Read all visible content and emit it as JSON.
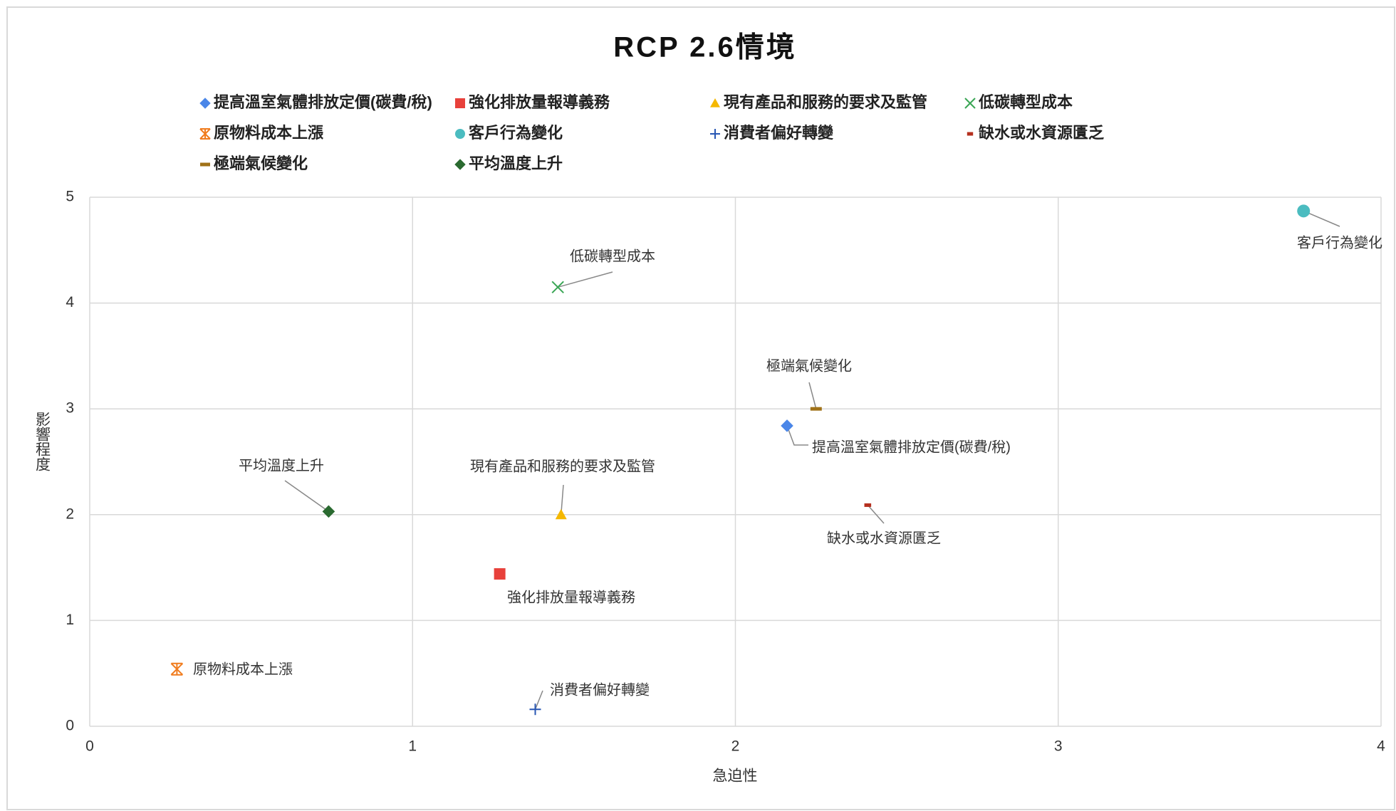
{
  "chart_data": {
    "type": "scatter",
    "title": "RCP 2.6情境",
    "x_label": "急迫性",
    "y_label": "影響程度",
    "xlim": [
      0,
      4
    ],
    "ylim": [
      0,
      5
    ],
    "xticks": [
      0,
      1,
      2,
      3,
      4
    ],
    "yticks": [
      0,
      1,
      2,
      3,
      4,
      5
    ],
    "grid": true,
    "legend": "top",
    "series": [
      {
        "name": "提高溫室氣體排放定價(碳費/稅)",
        "color": "#4a86e8",
        "marker": "diamond",
        "x": [
          2.16
        ],
        "values": [
          2.84
        ]
      },
      {
        "name": "強化排放量報導義務",
        "color": "#e8413b",
        "marker": "square",
        "x": [
          1.27
        ],
        "values": [
          1.44
        ]
      },
      {
        "name": "現有產品和服務的要求及監管",
        "color": "#f5b800",
        "marker": "triangle",
        "x": [
          1.46
        ],
        "values": [
          2.0
        ]
      },
      {
        "name": "低碳轉型成本",
        "color": "#3aa655",
        "marker": "x",
        "x": [
          1.45
        ],
        "values": [
          4.15
        ]
      },
      {
        "name": "原物料成本上漲",
        "color": "#f07c1e",
        "marker": "asterisk",
        "x": [
          0.27
        ],
        "values": [
          0.54
        ]
      },
      {
        "name": "客戶行為變化",
        "color": "#4bbcc0",
        "marker": "circle",
        "x": [
          3.76
        ],
        "values": [
          4.87
        ]
      },
      {
        "name": "消費者偏好轉變",
        "color": "#2756b3",
        "marker": "plus",
        "x": [
          1.38
        ],
        "values": [
          0.16
        ]
      },
      {
        "name": "缺水或水資源匱乏",
        "color": "#b5301f",
        "marker": "dash",
        "x": [
          2.41
        ],
        "values": [
          2.09
        ]
      },
      {
        "name": "極端氣候變化",
        "color": "#a07218",
        "marker": "longdash",
        "x": [
          2.25
        ],
        "values": [
          3.0
        ]
      },
      {
        "name": "平均溫度上升",
        "color": "#2a6a30",
        "marker": "diamond",
        "x": [
          0.74
        ],
        "values": [
          2.03
        ]
      }
    ]
  }
}
